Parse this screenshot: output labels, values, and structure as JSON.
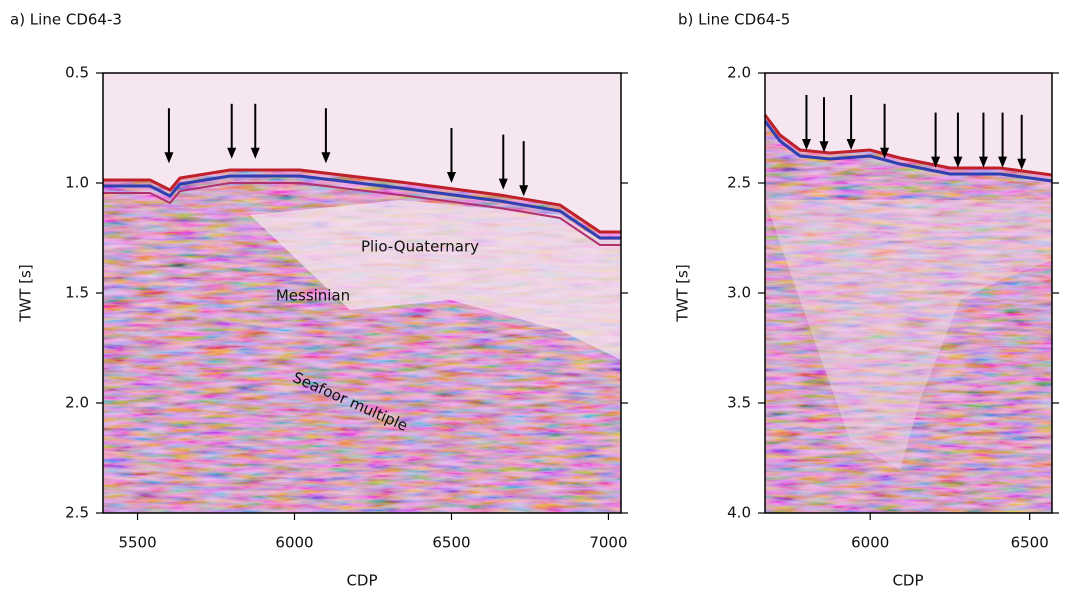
{
  "chart_data": [
    {
      "type": "seismic",
      "title": "a) Line CD64-3",
      "xlabel": "CDP",
      "ylabel": "TWT [s]",
      "xlim": [
        5390,
        7040
      ],
      "xticks": [
        5500,
        6000,
        6500,
        7000
      ],
      "ylim": [
        0.5,
        2.5
      ],
      "y_inverted": true,
      "yticks": [
        0.5,
        {
          "value": 1,
          "label": "1.0"
        },
        1.5,
        {
          "value": 2,
          "label": "2.0"
        },
        2.5
      ],
      "arrows": {
        "cdp": [
          5600,
          5800,
          5875,
          6100,
          6500,
          6665,
          6730
        ],
        "twt": [
          0.91,
          0.89,
          0.89,
          0.91,
          1.0,
          1.03,
          1.06
        ]
      },
      "annotations": [
        "Plio-Quaternary",
        "Messinian",
        "Seafoor multiple"
      ]
    },
    {
      "type": "seismic",
      "title": "b) Line CD64-5",
      "xlabel": "CDP",
      "ylabel": "TWT [s]",
      "xlim": [
        5670,
        6570
      ],
      "xticks": [
        6000,
        6500
      ],
      "ylim": [
        2,
        4
      ],
      "y_inverted": true,
      "yticks": [
        {
          "value": 2,
          "label": "2.0"
        },
        2.5,
        {
          "value": 3,
          "label": "3.0"
        },
        3.5,
        {
          "value": 4,
          "label": "4.0"
        }
      ],
      "arrows": {
        "cdp": [
          5800,
          5855,
          5940,
          6045,
          6205,
          6275,
          6355,
          6415,
          6475
        ],
        "twt": [
          2.35,
          2.36,
          2.35,
          2.39,
          2.43,
          2.43,
          2.43,
          2.43,
          2.44
        ]
      },
      "annotations": []
    }
  ]
}
